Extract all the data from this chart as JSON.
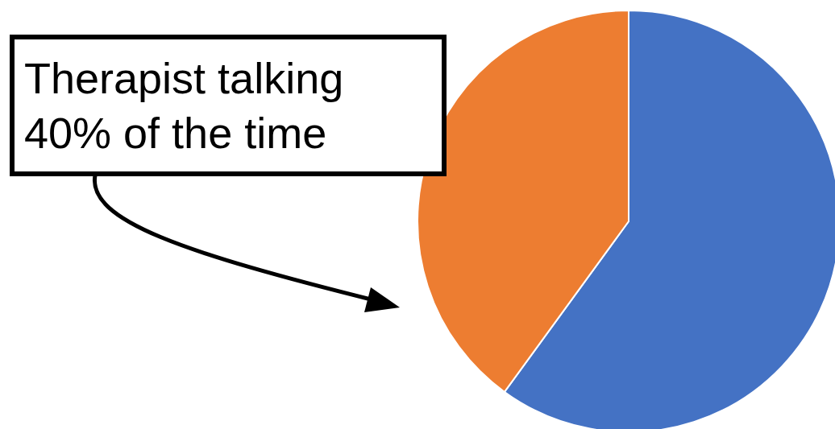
{
  "chart_data": {
    "type": "pie",
    "categories": [
      null,
      null
    ],
    "values": [
      60,
      40
    ],
    "colors": [
      "#4472c4",
      "#ed7d31"
    ],
    "annotations": [
      "Therapist talking 40% of the time"
    ]
  }
}
